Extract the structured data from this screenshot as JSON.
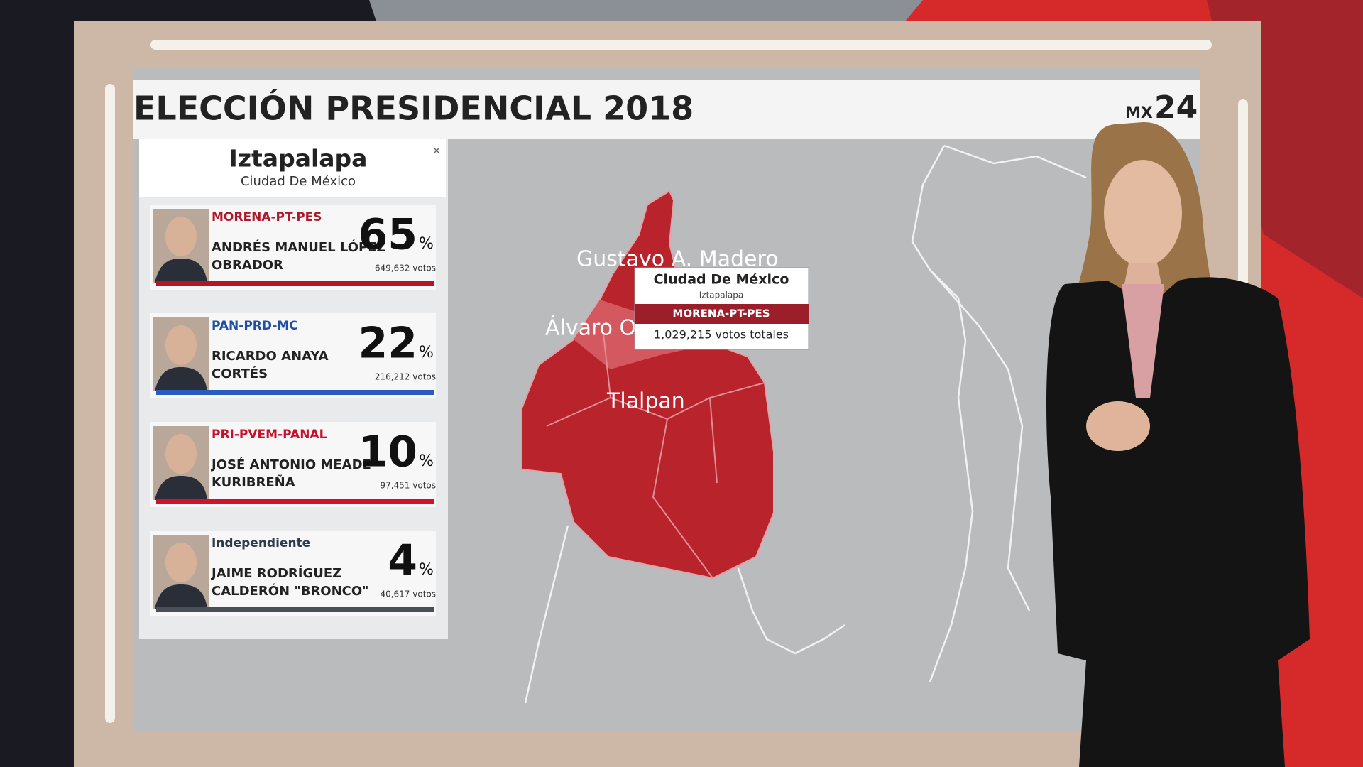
{
  "header": {
    "title": "ELECCIÓN PRESIDENCIAL 2018",
    "logo_prefix": "MX",
    "logo_number": "24"
  },
  "panel": {
    "title": "Iztapalapa",
    "subtitle": "Ciudad De México",
    "candidates": [
      {
        "party": "MORENA-PT-PES",
        "party_color": "#b0182a",
        "name_line1": "ANDRÉS MANUEL LÓPEZ",
        "name_line2": "OBRADOR",
        "percent": 65,
        "percent_unit": "%",
        "votes": "649,632 votos",
        "bar_color": "#b0182a"
      },
      {
        "party": "PAN-PRD-MC",
        "party_color": "#1f4fa8",
        "name_line1": "RICARDO ANAYA",
        "name_line2": "CORTÉS",
        "percent": 22,
        "percent_unit": "%",
        "votes": "216,212 votos",
        "bar_color": "#2a5bbf"
      },
      {
        "party": "PRI-PVEM-PANAL",
        "party_color": "#c8102e",
        "name_line1": "JOSÉ ANTONIO MEADE",
        "name_line2": "KURIBREÑA",
        "percent": 10,
        "percent_unit": "%",
        "votes": "97,451 votos",
        "bar_color": "#d0122c"
      },
      {
        "party": "Independiente",
        "party_color": "#2d3a4a",
        "name_line1": "JAIME RODRÍGUEZ",
        "name_line2": "CALDERÓN \"BRONCO\"",
        "percent": 4,
        "percent_unit": "%",
        "votes": "40,617 votos",
        "bar_color": "#4a4f57"
      }
    ]
  },
  "map": {
    "labels": [
      "Gustavo A. Madero",
      "Álvaro Obregón",
      "Tlalpan"
    ]
  },
  "tooltip": {
    "title": "Ciudad De México",
    "subtitle": "Iztapalapa",
    "party": "MORENA-PT-PES",
    "total": "1,029,215 votos totales"
  }
}
